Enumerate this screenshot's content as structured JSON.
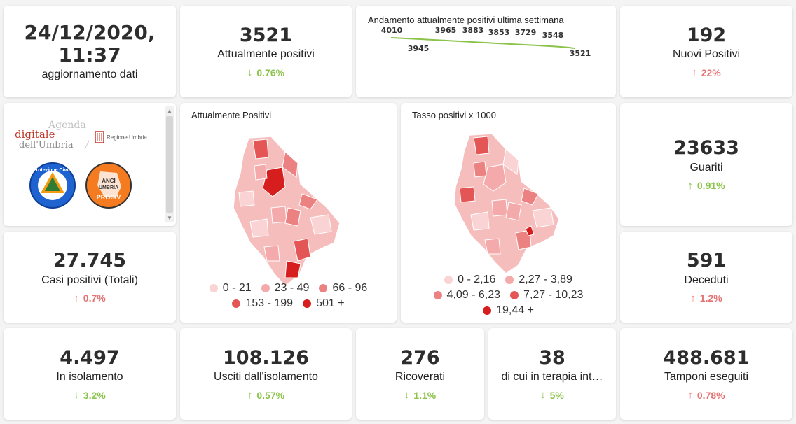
{
  "update": {
    "datetime": "24/12/2020, 11:37",
    "label": "aggiornamento dati"
  },
  "attualmente_positivi": {
    "value": "3521",
    "label": "Attualmente positivi",
    "delta": "0.76%",
    "direction": "down"
  },
  "trend": {
    "title": "Andamento attualmente positivi ultima settimana",
    "color": "#8bc34a",
    "points_above": [
      "4010",
      "3965",
      "3883",
      "3853",
      "3729",
      "3548"
    ],
    "points_below": [
      "3945",
      "3521"
    ]
  },
  "nuovi_positivi": {
    "value": "192",
    "label": "Nuovi Positivi",
    "delta": "22%",
    "direction": "up"
  },
  "logos": {
    "agenda_line1": "Agenda",
    "agenda_line2": "digitale",
    "agenda_line3": "dell'Umbria",
    "regione": "Regione Umbria",
    "protezione_civile": "Protezione Civile",
    "anci_line1": "ANCI",
    "anci_line2": "UMBRIA",
    "anci_line3": "PROCIV",
    "scroll_up_icon": "triangle-up",
    "scroll_down_icon": "triangle-down"
  },
  "map_positivi": {
    "title": "Attualmente Positivi",
    "legend": [
      {
        "label": "0 - 21",
        "color": "#fad4d4"
      },
      {
        "label": "23 - 49",
        "color": "#f4aaaa"
      },
      {
        "label": "66 - 96",
        "color": "#ec8181"
      },
      {
        "label": "153 - 199",
        "color": "#e45555"
      },
      {
        "label": "501 +",
        "color": "#d61e1e"
      }
    ]
  },
  "map_tasso": {
    "title": "Tasso positivi x 1000",
    "legend": [
      {
        "label": "0 - 2,16",
        "color": "#fad4d4"
      },
      {
        "label": "2,27 - 3,89",
        "color": "#f4aaaa"
      },
      {
        "label": "4,09 - 6,23",
        "color": "#ec8181"
      },
      {
        "label": "7,27 - 10,23",
        "color": "#e45555"
      },
      {
        "label": "19,44 +",
        "color": "#d61e1e"
      }
    ]
  },
  "guariti": {
    "value": "23633",
    "label": "Guariti",
    "delta": "0.91%",
    "direction": "up-good"
  },
  "casi_totali": {
    "value": "27.745",
    "label": "Casi positivi (Totali)",
    "delta": "0.7%",
    "direction": "up"
  },
  "deceduti": {
    "value": "591",
    "label": "Deceduti",
    "delta": "1.2%",
    "direction": "up"
  },
  "isolamento": {
    "value": "4.497",
    "label": "In isolamento",
    "delta": "3.2%",
    "direction": "down"
  },
  "usciti": {
    "value": "108.126",
    "label": "Usciti dall'isolamento",
    "delta": "0.57%",
    "direction": "up-good"
  },
  "ricoverati": {
    "value": "276",
    "label": "Ricoverati",
    "delta": "1.1%",
    "direction": "down"
  },
  "terapia": {
    "value": "38",
    "label": "di cui in terapia int…",
    "delta": "5%",
    "direction": "down"
  },
  "tamponi": {
    "value": "488.681",
    "label": "Tamponi eseguiti",
    "delta": "0.78%",
    "direction": "up"
  },
  "colors": {
    "up_bad": "#e57373",
    "down_good": "#8bc34a",
    "map_base": "#f4b3b3"
  }
}
